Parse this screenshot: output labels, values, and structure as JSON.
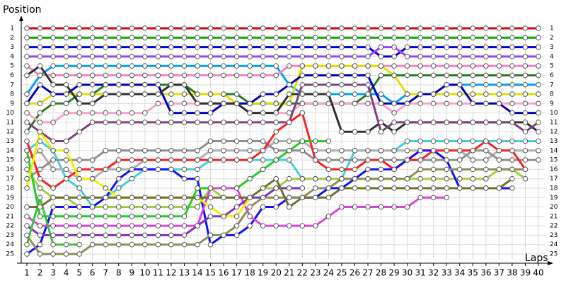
{
  "chart_data": {
    "type": "line",
    "y_label": "Position",
    "x_label": "Laps",
    "x": [
      1,
      2,
      3,
      4,
      5,
      6,
      7,
      8,
      9,
      10,
      11,
      12,
      13,
      14,
      15,
      16,
      17,
      18,
      19,
      20,
      21,
      22,
      23,
      24,
      25,
      26,
      27,
      28,
      29,
      30,
      31,
      32,
      33,
      34,
      35,
      36,
      37,
      38,
      39,
      40
    ],
    "xlim": [
      1,
      40
    ],
    "xticks": [
      1,
      2,
      3,
      4,
      5,
      6,
      7,
      8,
      9,
      10,
      11,
      12,
      13,
      14,
      15,
      16,
      17,
      18,
      19,
      20,
      21,
      22,
      23,
      24,
      25,
      26,
      27,
      28,
      29,
      30,
      31,
      32,
      33,
      34,
      35,
      36,
      37,
      38,
      39,
      40
    ],
    "ylim": [
      1,
      25
    ],
    "yticks": [
      1,
      2,
      3,
      4,
      5,
      6,
      7,
      8,
      9,
      10,
      11,
      12,
      13,
      14,
      15,
      16,
      17,
      18,
      19,
      20,
      21,
      22,
      23,
      24,
      25
    ],
    "y_inverted": true,
    "grid": true,
    "series": [
      {
        "color": "#e00000",
        "values": [
          1,
          1,
          1,
          1,
          1,
          1,
          1,
          1,
          1,
          1,
          1,
          1,
          1,
          1,
          1,
          1,
          1,
          1,
          1,
          1,
          1,
          1,
          1,
          1,
          1,
          1,
          1,
          1,
          1,
          1,
          1,
          1,
          1,
          1,
          1,
          1,
          1,
          1,
          1,
          1
        ]
      },
      {
        "color": "#00b000",
        "values": [
          2,
          2,
          2,
          2,
          2,
          2,
          2,
          2,
          2,
          2,
          2,
          2,
          2,
          2,
          2,
          2,
          2,
          2,
          2,
          2,
          2,
          2,
          2,
          2,
          2,
          2,
          2,
          2,
          2,
          2,
          2,
          2,
          2,
          2,
          2,
          2,
          2,
          2,
          2,
          2
        ]
      },
      {
        "color": "#0000e0",
        "values": [
          3,
          3,
          3,
          3,
          3,
          3,
          3,
          3,
          3,
          3,
          3,
          3,
          3,
          3,
          3,
          3,
          3,
          3,
          3,
          3,
          3,
          3,
          3,
          3,
          3,
          3,
          3,
          4,
          4,
          3,
          3,
          3,
          3,
          3,
          3,
          3,
          3,
          3,
          3,
          3
        ]
      },
      {
        "color": "#a040ff",
        "values": [
          4,
          4,
          4,
          4,
          4,
          4,
          4,
          4,
          4,
          4,
          4,
          4,
          4,
          4,
          4,
          4,
          4,
          4,
          4,
          4,
          4,
          4,
          4,
          4,
          4,
          4,
          4,
          3,
          3,
          4,
          4,
          4,
          4,
          4,
          4,
          4,
          4,
          4,
          4,
          4
        ]
      },
      {
        "color": "#00a0ff",
        "values": [
          8,
          6,
          5,
          5,
          5,
          5,
          5,
          5,
          5,
          5,
          5,
          5,
          5,
          5,
          5,
          5,
          5,
          5,
          5,
          5,
          7,
          8,
          8,
          8,
          8,
          8,
          8,
          8,
          9,
          8,
          8,
          8,
          7,
          7,
          7,
          7,
          7,
          7,
          7,
          7
        ]
      },
      {
        "color": "#ff80c0",
        "values": [
          5,
          6,
          6,
          6,
          6,
          6,
          6,
          6,
          6,
          6,
          6,
          6,
          6,
          6,
          6,
          6,
          6,
          6,
          6,
          6,
          5,
          5,
          5,
          5,
          5,
          5,
          5,
          5,
          5,
          5,
          5,
          5,
          5,
          5,
          5,
          5,
          5,
          5,
          5,
          5
        ]
      },
      {
        "color": "#208020",
        "values": [
          12,
          10,
          9,
          9,
          8,
          8,
          7,
          7,
          7,
          7,
          7,
          7,
          7,
          8,
          8,
          8,
          8,
          9,
          9,
          9,
          9,
          9,
          9,
          9,
          9,
          9,
          8,
          6,
          6,
          6,
          6,
          6,
          6,
          6,
          6,
          6,
          6,
          6,
          6,
          6
        ]
      },
      {
        "color": "#e0e000",
        "values": [
          9,
          9,
          8,
          8,
          8,
          8,
          8,
          8,
          8,
          8,
          8,
          8,
          8,
          8,
          8,
          8,
          9,
          9,
          9,
          9,
          9,
          5,
          5,
          5,
          5,
          5,
          5,
          5,
          6,
          8,
          8,
          8,
          8,
          8,
          8,
          8,
          8,
          8,
          8,
          8
        ]
      },
      {
        "color": "#ffa0d0",
        "values": [
          10,
          11,
          11,
          10,
          10,
          10,
          10,
          10,
          10,
          10,
          9,
          9,
          9,
          9,
          9,
          9,
          9,
          10,
          10,
          10,
          10,
          9,
          9,
          9,
          9,
          9,
          9,
          9,
          10,
          9,
          9,
          9,
          9,
          9,
          9,
          9,
          9,
          9,
          9,
          9
        ]
      },
      {
        "color": "#0000c0",
        "values": [
          9,
          7,
          8,
          8,
          7,
          7,
          7,
          7,
          7,
          7,
          7,
          10,
          10,
          10,
          10,
          9,
          9,
          9,
          8,
          8,
          7,
          6,
          6,
          6,
          6,
          6,
          6,
          9,
          9,
          9,
          8,
          8,
          7,
          7,
          9,
          9,
          9,
          10,
          10,
          10
        ]
      },
      {
        "color": "#303030",
        "values": [
          6,
          5,
          7,
          7,
          9,
          9,
          8,
          8,
          8,
          8,
          8,
          7,
          7,
          9,
          9,
          9,
          9,
          10,
          10,
          10,
          8,
          8,
          8,
          8,
          12,
          12,
          12,
          11,
          12,
          11,
          11,
          11,
          11,
          11,
          11,
          11,
          11,
          11,
          11,
          12
        ]
      },
      {
        "color": "#804080",
        "values": [
          11,
          12,
          13,
          13,
          12,
          11,
          11,
          11,
          11,
          11,
          11,
          11,
          11,
          11,
          11,
          11,
          11,
          11,
          11,
          11,
          11,
          7,
          7,
          7,
          7,
          7,
          7,
          12,
          11,
          11,
          11,
          11,
          11,
          11,
          11,
          11,
          11,
          11,
          12,
          11
        ]
      },
      {
        "color": "#40d0e0",
        "values": [
          14,
          13,
          14,
          17,
          18,
          20,
          19,
          18,
          17,
          16,
          16,
          16,
          16,
          16,
          15,
          15,
          15,
          15,
          15,
          15,
          15,
          17,
          17,
          17,
          17,
          14,
          14,
          14,
          14,
          13,
          13,
          13,
          13,
          13,
          13,
          13,
          13,
          13,
          13,
          13
        ]
      },
      {
        "color": "#b0b0b0",
        "values": [
          15,
          14,
          16,
          16,
          17,
          17,
          16,
          16,
          16,
          15,
          15,
          15,
          15,
          15,
          14,
          14,
          14,
          14,
          14,
          13,
          13,
          13,
          14,
          14,
          14,
          14,
          14,
          14,
          14,
          14,
          14,
          14,
          14,
          14,
          15,
          15,
          14,
          14,
          14,
          14
        ]
      },
      {
        "color": "#909090",
        "values": [
          17,
          16,
          15,
          15,
          15,
          15,
          14,
          14,
          14,
          14,
          14,
          14,
          14,
          14,
          13,
          13,
          13,
          13,
          13,
          14,
          14,
          14,
          15,
          15,
          15,
          15,
          15,
          15,
          15,
          15,
          15,
          15,
          15,
          15,
          14,
          14,
          15,
          15,
          15,
          15
        ]
      },
      {
        "color": "#ff2020",
        "values": [
          13,
          17,
          18,
          17,
          16,
          16,
          16,
          15,
          15,
          15,
          15,
          15,
          15,
          15,
          15,
          15,
          15,
          15,
          14,
          12,
          11,
          10,
          15,
          16,
          16,
          16,
          15,
          15,
          16,
          15,
          15,
          14,
          14,
          14,
          14,
          13,
          14,
          14,
          16,
          null
        ]
      },
      {
        "color": "#a0d040",
        "values": [
          16,
          18,
          19,
          19,
          20,
          20,
          20,
          20,
          20,
          20,
          20,
          20,
          20,
          20,
          18,
          19,
          19,
          19,
          18,
          18,
          17,
          17,
          17,
          17,
          17,
          17,
          17,
          17,
          17,
          17,
          17,
          17,
          17,
          17,
          17,
          17,
          16,
          16,
          17,
          null
        ]
      },
      {
        "color": "#1010ff",
        "values": [
          25,
          24,
          20,
          20,
          20,
          20,
          19,
          17,
          16,
          16,
          16,
          16,
          17,
          17,
          24,
          23,
          23,
          22,
          20,
          20,
          19,
          19,
          19,
          18,
          18,
          17,
          16,
          16,
          16,
          15,
          14,
          14,
          15,
          18,
          18,
          18,
          18,
          18,
          null,
          null
        ]
      },
      {
        "color": "#20d020",
        "values": [
          14,
          21,
          21,
          21,
          21,
          21,
          21,
          21,
          21,
          21,
          21,
          21,
          21,
          18,
          18,
          18,
          18,
          17,
          16,
          15,
          14,
          13,
          13,
          13,
          null,
          null,
          null,
          null,
          null,
          null,
          null,
          null,
          null,
          null,
          null,
          null,
          null,
          null,
          null,
          null
        ]
      },
      {
        "color": "#e040e0",
        "values": [
          21,
          22,
          22,
          22,
          22,
          22,
          22,
          22,
          22,
          22,
          22,
          22,
          22,
          22,
          18,
          18,
          18,
          21,
          22,
          22,
          22,
          22,
          22,
          21,
          20,
          20,
          20,
          20,
          20,
          20,
          19,
          19,
          19,
          null,
          null,
          null,
          null,
          null,
          null,
          null
        ]
      },
      {
        "color": "#909050",
        "values": [
          23,
          25,
          25,
          25,
          25,
          24,
          24,
          24,
          24,
          24,
          24,
          24,
          24,
          24,
          23,
          23,
          22,
          20,
          19,
          19,
          19,
          19,
          18,
          18,
          17,
          17,
          17,
          17,
          17,
          17,
          16,
          16,
          16,
          16,
          16,
          16,
          16,
          16,
          16,
          null
        ]
      },
      {
        "color": "#8030c0",
        "values": [
          22,
          23,
          23,
          23,
          23,
          23,
          23,
          23,
          23,
          23,
          23,
          23,
          23,
          22,
          21,
          21,
          20,
          19,
          19,
          18,
          18,
          18,
          null,
          null,
          null,
          null,
          null,
          null,
          null,
          null,
          null,
          null,
          null,
          null,
          null,
          null,
          null,
          null,
          null,
          null
        ]
      },
      {
        "color": "#f0f000",
        "values": [
          18,
          12,
          14,
          14,
          17,
          17,
          18,
          19,
          19,
          19,
          19,
          19,
          19,
          19,
          20,
          21,
          21,
          19,
          null,
          null,
          null,
          null,
          null,
          null,
          null,
          null,
          null,
          null,
          null,
          null,
          null,
          null,
          null,
          null,
          null,
          null,
          null,
          null,
          null,
          null
        ]
      },
      {
        "color": "#40c040",
        "values": [
          24,
          19,
          24,
          24,
          24,
          null,
          null,
          null,
          null,
          null,
          null,
          null,
          null,
          null,
          null,
          null,
          null,
          null,
          null,
          null,
          null,
          null,
          null,
          null,
          null,
          null,
          null,
          null,
          null,
          null,
          null,
          null,
          null,
          null,
          null,
          null,
          null,
          null,
          null,
          null
        ]
      },
      {
        "color": "#707030",
        "values": [
          20,
          20,
          19,
          19,
          19,
          19,
          19,
          19,
          19,
          19,
          19,
          19,
          19,
          19,
          19,
          19,
          19,
          19,
          18,
          17,
          20,
          19,
          19,
          19,
          18,
          18,
          18,
          18,
          18,
          18,
          18,
          18,
          18,
          18,
          18,
          18,
          18,
          17,
          null,
          null
        ]
      }
    ]
  }
}
